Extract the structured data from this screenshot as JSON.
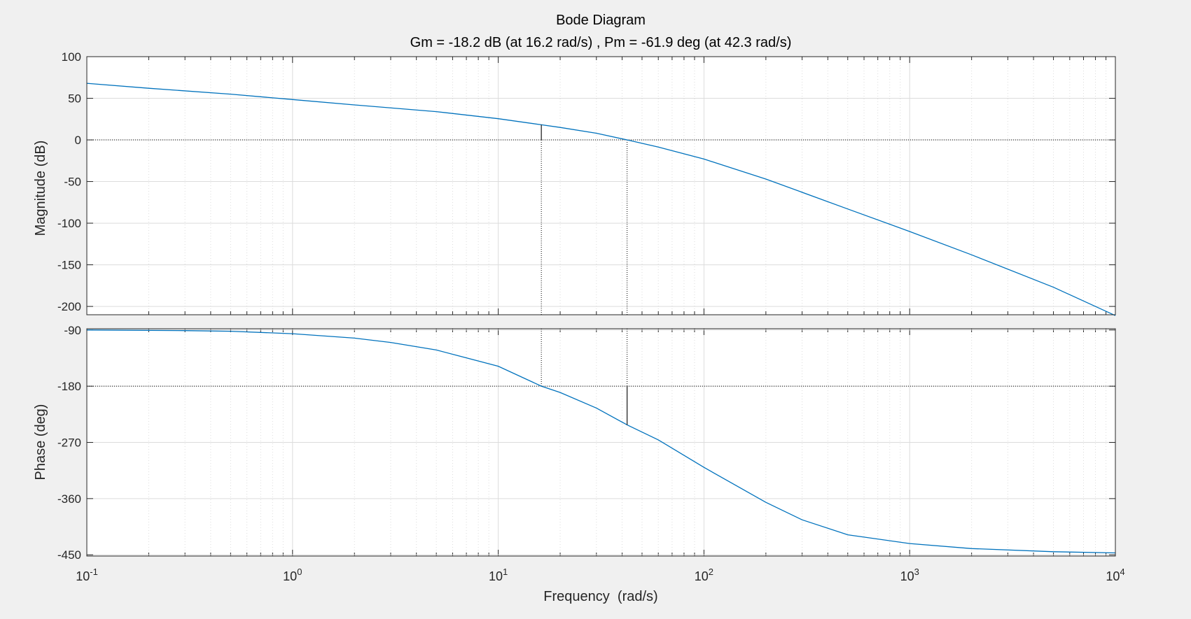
{
  "figure": {
    "background_color": "#f0f0f0",
    "axes_color": "#ffffff",
    "grid_color": "#dcdcdc",
    "line_color": "#0072bd",
    "marker_color": "#262626"
  },
  "chart_data": {
    "type": "line",
    "title": "Bode Diagram",
    "subtitle": "Gm = -18.2 dB (at 16.2 rad/s) ,  Pm = -61.9 deg (at 42.3 rad/s)",
    "xlabel": "Frequency  (rad/s)",
    "xscale": "log",
    "xlim": [
      0.1,
      10000
    ],
    "xticks": [
      {
        "value": 0.1,
        "base": "10",
        "exp": "-1"
      },
      {
        "value": 1,
        "base": "10",
        "exp": "0"
      },
      {
        "value": 10,
        "base": "10",
        "exp": "1"
      },
      {
        "value": 100,
        "base": "10",
        "exp": "2"
      },
      {
        "value": 1000,
        "base": "10",
        "exp": "3"
      },
      {
        "value": 10000,
        "base": "10",
        "exp": "4"
      }
    ],
    "grid": true,
    "panels": [
      {
        "name": "magnitude",
        "ylabel": "Magnitude (dB)",
        "ylim": [
          -210,
          100
        ],
        "yticks": [
          100,
          50,
          0,
          -50,
          -100,
          -150,
          -200
        ],
        "reference_y": 0,
        "series": [
          {
            "x": [
              0.1,
              0.2,
              0.5,
              1,
              2,
              5,
              10,
              16.2,
              20,
              30,
              42.3,
              60,
              100,
              200,
              500,
              1000,
              2000,
              5000,
              10000
            ],
            "y": [
              68,
              62,
              55,
              48.5,
              42,
              34,
              25.5,
              18.2,
              15,
              8,
              0,
              -8.5,
              -23,
              -47,
              -83,
              -110,
              -138,
              -177,
              -211
            ]
          }
        ],
        "margin_marker": {
          "x": 16.2,
          "from": 0,
          "to": 18.2
        }
      },
      {
        "name": "phase",
        "ylabel": "Phase (deg)",
        "ylim": [
          -452,
          -88
        ],
        "yticks": [
          -90,
          -180,
          -270,
          -360,
          -450
        ],
        "reference_y": -180,
        "series": [
          {
            "x": [
              0.1,
              0.3,
              0.5,
              1,
              2,
              3,
              5,
              10,
              16.2,
              20,
              30,
              42.3,
              60,
              100,
              200,
              300,
              500,
              1000,
              2000,
              5000,
              10000
            ],
            "y": [
              -90,
              -91,
              -92,
              -96,
              -103,
              -110,
              -122,
              -148,
              -180,
              -190,
              -215,
              -241.9,
              -266,
              -310,
              -366,
              -394,
              -418,
              -432,
              -440,
              -445,
              -447
            ]
          }
        ],
        "margin_marker": {
          "x": 42.3,
          "from": -180,
          "to": -241.9
        }
      }
    ],
    "margins": {
      "gain_margin_db": -18.2,
      "gain_crossover_freq": 16.2,
      "phase_margin_deg": -61.9,
      "phase_crossover_freq": 42.3
    }
  }
}
